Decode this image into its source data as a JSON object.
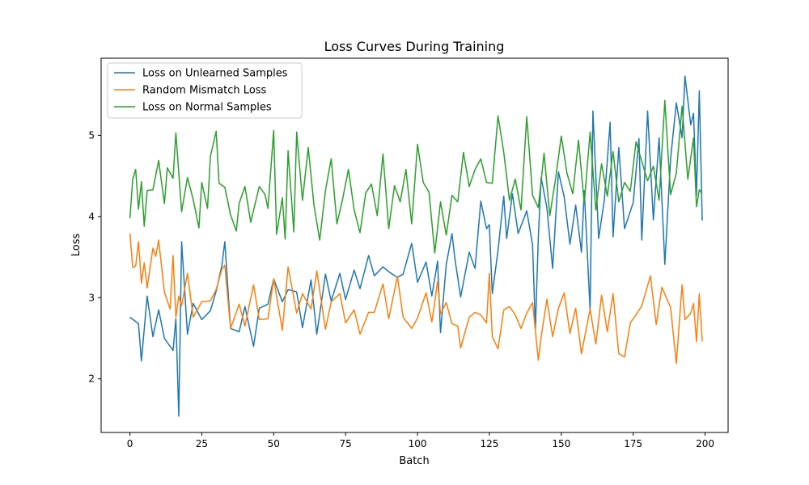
{
  "chart_data": {
    "type": "line",
    "title": "Loss Curves During Training",
    "xlabel": "Batch",
    "ylabel": "Loss",
    "xlim": [
      -10,
      208
    ],
    "ylim": [
      1.34,
      5.95
    ],
    "xticks": [
      0,
      25,
      50,
      75,
      100,
      125,
      150,
      175,
      200
    ],
    "yticks": [
      2,
      3,
      4,
      5
    ],
    "legend_position": "upper-left",
    "grid": false,
    "series": [
      {
        "name": "Loss on Unlearned Samples",
        "color": "#1f77b4",
        "x": [
          0,
          3,
          4,
          6,
          8,
          10,
          12,
          15,
          16,
          17,
          18,
          20,
          22,
          25,
          28,
          30,
          32,
          33,
          35,
          38,
          40,
          43,
          45,
          48,
          50,
          53,
          55,
          58,
          60,
          63,
          65,
          68,
          70,
          73,
          75,
          78,
          80,
          83,
          85,
          88,
          90,
          93,
          95,
          98,
          100,
          103,
          105,
          107,
          108,
          110,
          112,
          113,
          115,
          118,
          120,
          122,
          124,
          125,
          126,
          128,
          130,
          131,
          133,
          135,
          138,
          140,
          141,
          142,
          143,
          145,
          147,
          149,
          151,
          153,
          155,
          157,
          158,
          160,
          161,
          163,
          165,
          167,
          168,
          170,
          172,
          175,
          177,
          178,
          180,
          182,
          184,
          186,
          188,
          190,
          192,
          193,
          195,
          196,
          197,
          198,
          199
        ],
        "values": [
          2.76,
          2.68,
          2.22,
          3.02,
          2.52,
          2.85,
          2.5,
          2.35,
          2.74,
          1.54,
          3.69,
          2.55,
          2.93,
          2.73,
          2.84,
          3.08,
          3.4,
          3.69,
          2.62,
          2.58,
          2.89,
          2.4,
          2.87,
          2.92,
          3.23,
          2.95,
          3.1,
          3.07,
          2.63,
          3.22,
          2.55,
          3.29,
          2.96,
          3.3,
          2.98,
          3.34,
          3.11,
          3.52,
          3.27,
          3.38,
          3.32,
          3.25,
          3.29,
          3.67,
          3.19,
          3.44,
          3.02,
          3.45,
          2.57,
          3.41,
          3.79,
          3.48,
          3.01,
          3.56,
          3.36,
          4.19,
          3.85,
          3.9,
          3.05,
          3.58,
          4.25,
          3.73,
          4.28,
          3.79,
          4.07,
          3.65,
          2.61,
          3.74,
          4.48,
          4.11,
          3.36,
          4.55,
          4.24,
          3.66,
          4.14,
          3.56,
          4.32,
          2.85,
          5.3,
          3.73,
          4.21,
          5.16,
          3.75,
          4.85,
          3.85,
          4.17,
          4.96,
          3.71,
          5.3,
          3.96,
          4.97,
          3.41,
          4.71,
          5.4,
          4.97,
          5.73,
          5.13,
          5.27,
          4.26,
          5.55,
          3.95
        ]
      },
      {
        "name": "Random Mismatch Loss",
        "color": "#ff7f0e",
        "x": [
          0,
          1,
          2,
          3,
          4,
          5,
          6,
          8,
          9,
          10,
          12,
          14,
          15,
          16,
          17,
          18,
          20,
          22,
          25,
          28,
          30,
          32,
          33,
          35,
          38,
          40,
          43,
          45,
          48,
          50,
          53,
          55,
          58,
          60,
          63,
          65,
          68,
          70,
          73,
          75,
          78,
          80,
          83,
          85,
          88,
          90,
          93,
          95,
          98,
          100,
          103,
          105,
          107,
          108,
          110,
          112,
          114,
          115,
          118,
          120,
          122,
          124,
          125,
          126,
          128,
          130,
          132,
          134,
          136,
          138,
          140,
          142,
          143,
          145,
          147,
          149,
          151,
          153,
          155,
          157,
          160,
          162,
          164,
          166,
          168,
          170,
          172,
          174,
          176,
          178,
          181,
          183,
          185,
          187,
          188,
          190,
          192,
          193,
          195,
          196,
          197,
          198,
          199
        ],
        "values": [
          3.79,
          3.37,
          3.39,
          3.69,
          3.18,
          3.43,
          3.12,
          3.61,
          3.51,
          3.71,
          3.07,
          2.86,
          3.52,
          2.76,
          3.02,
          2.9,
          3.3,
          2.76,
          2.95,
          2.96,
          3.1,
          3.35,
          3.4,
          2.62,
          2.92,
          2.65,
          3.16,
          2.73,
          2.74,
          3.23,
          2.6,
          3.38,
          2.81,
          3.05,
          2.86,
          3.33,
          2.61,
          2.95,
          3.05,
          2.69,
          2.85,
          2.55,
          2.82,
          2.82,
          3.17,
          2.74,
          3.26,
          2.76,
          2.62,
          2.75,
          3.06,
          2.7,
          3.2,
          2.8,
          2.94,
          2.68,
          2.65,
          2.38,
          2.76,
          2.82,
          2.79,
          2.69,
          3.3,
          2.52,
          2.37,
          2.85,
          2.89,
          2.79,
          2.62,
          2.81,
          2.94,
          2.23,
          2.52,
          2.98,
          2.52,
          2.87,
          3.06,
          2.56,
          2.87,
          2.31,
          2.86,
          2.43,
          3.03,
          2.58,
          3.05,
          2.31,
          2.27,
          2.69,
          2.79,
          2.9,
          3.27,
          2.67,
          3.13,
          2.96,
          2.88,
          2.19,
          3.16,
          2.73,
          2.81,
          2.93,
          2.46,
          3.05,
          2.46
        ]
      },
      {
        "name": "Loss on Normal Samples",
        "color": "#2ca02c",
        "x": [
          0,
          1,
          2,
          3,
          4,
          5,
          6,
          8,
          10,
          12,
          13,
          15,
          16,
          18,
          20,
          22,
          24,
          25,
          27,
          28,
          30,
          31,
          33,
          35,
          37,
          38,
          40,
          42,
          45,
          47,
          48,
          50,
          51,
          53,
          54,
          55,
          57,
          58,
          60,
          62,
          64,
          66,
          68,
          70,
          72,
          74,
          76,
          78,
          80,
          82,
          84,
          86,
          88,
          90,
          92,
          94,
          96,
          98,
          100,
          102,
          104,
          106,
          108,
          110,
          112,
          114,
          116,
          118,
          120,
          122,
          124,
          126,
          128,
          130,
          132,
          134,
          136,
          138,
          140,
          142,
          144,
          146,
          148,
          150,
          152,
          154,
          156,
          158,
          160,
          162,
          164,
          166,
          168,
          170,
          172,
          174,
          176,
          178,
          180,
          182,
          184,
          186,
          188,
          190,
          192,
          194,
          196,
          197,
          198,
          199
        ],
        "values": [
          3.98,
          4.46,
          4.58,
          4.09,
          4.43,
          3.88,
          4.32,
          4.33,
          4.69,
          4.16,
          4.6,
          4.47,
          5.03,
          4.06,
          4.48,
          4.21,
          3.86,
          4.42,
          4.1,
          4.74,
          5.05,
          4.41,
          4.36,
          4.02,
          3.82,
          4.16,
          4.37,
          3.93,
          4.37,
          4.27,
          4.1,
          5.06,
          3.78,
          4.23,
          3.72,
          4.81,
          3.81,
          5.04,
          4.2,
          4.85,
          4.14,
          3.71,
          4.32,
          4.71,
          3.91,
          4.22,
          4.58,
          4.08,
          3.8,
          4.29,
          4.4,
          4.01,
          4.77,
          3.85,
          4.38,
          4.18,
          4.58,
          3.91,
          4.89,
          4.42,
          4.3,
          3.55,
          4.18,
          3.77,
          4.26,
          4.18,
          4.79,
          4.37,
          4.58,
          4.71,
          4.42,
          4.41,
          5.24,
          4.79,
          4.2,
          4.46,
          4.08,
          5.23,
          4.26,
          4.11,
          4.78,
          4.01,
          4.46,
          4.99,
          4.53,
          4.28,
          4.94,
          4.16,
          5.04,
          4.08,
          4.65,
          4.25,
          4.8,
          4.18,
          4.42,
          4.31,
          4.92,
          4.68,
          4.44,
          4.62,
          4.2,
          5.43,
          4.27,
          4.53,
          5.36,
          4.46,
          4.97,
          4.12,
          4.33,
          4.28
        ]
      }
    ]
  }
}
